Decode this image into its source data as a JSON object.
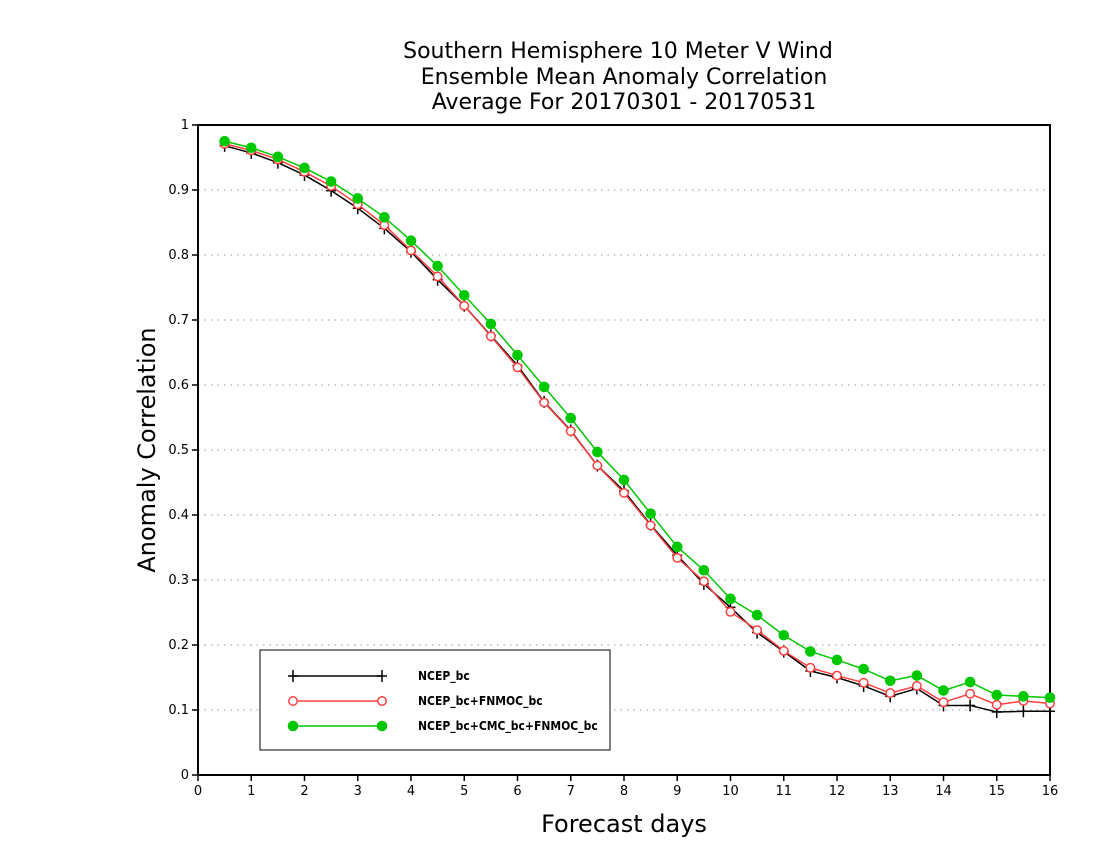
{
  "chart_data": {
    "type": "line",
    "title": [
      "Southern Hemisphere 10 Meter V Wind",
      "Ensemble Mean Anomaly Correlation",
      "Average For 20170301 - 20170531"
    ],
    "xlabel": "Forecast days",
    "ylabel": "Anomaly Correlation",
    "xlim": [
      0,
      16
    ],
    "ylim": [
      0,
      1
    ],
    "xticks": [
      "0",
      "1",
      "2",
      "3",
      "4",
      "5",
      "6",
      "7",
      "8",
      "9",
      "10",
      "11",
      "12",
      "13",
      "14",
      "15",
      "16"
    ],
    "yticks": [
      "0",
      "0.1",
      "0.2",
      "0.3",
      "0.4",
      "0.5",
      "0.6",
      "0.7",
      "0.8",
      "0.9",
      "1"
    ],
    "grid": "horizontal dotted",
    "legend_position": "bottom-left",
    "x": [
      0.5,
      1,
      1.5,
      2,
      2.5,
      3,
      3.5,
      4,
      4.5,
      5,
      5.5,
      6,
      6.5,
      7,
      7.5,
      8,
      8.5,
      9,
      9.5,
      10,
      10.5,
      11,
      11.5,
      12,
      12.5,
      13,
      13.5,
      14,
      14.5,
      15,
      15.5,
      16
    ],
    "series": [
      {
        "name": "NCEP_bc",
        "color": "#000000",
        "marker": "plus",
        "values": [
          0.968,
          0.957,
          0.942,
          0.923,
          0.899,
          0.872,
          0.841,
          0.805,
          0.762,
          0.722,
          0.676,
          0.63,
          0.574,
          0.53,
          0.476,
          0.437,
          0.385,
          0.338,
          0.294,
          0.258,
          0.219,
          0.19,
          0.16,
          0.15,
          0.137,
          0.121,
          0.133,
          0.107,
          0.107,
          0.097,
          0.098,
          0.098
        ]
      },
      {
        "name": "NCEP_bc+FNMOC_bc",
        "color": "#ff4040",
        "marker": "open-circle",
        "values": [
          0.971,
          0.961,
          0.947,
          0.928,
          0.906,
          0.878,
          0.846,
          0.807,
          0.767,
          0.722,
          0.675,
          0.627,
          0.573,
          0.529,
          0.476,
          0.434,
          0.384,
          0.334,
          0.298,
          0.251,
          0.223,
          0.191,
          0.165,
          0.153,
          0.142,
          0.126,
          0.137,
          0.112,
          0.125,
          0.108,
          0.114,
          0.11
        ]
      },
      {
        "name": "NCEP_bc+CMC_bc+FNMOC_bc",
        "color": "#00c800",
        "marker": "filled-circle",
        "values": [
          0.975,
          0.965,
          0.951,
          0.934,
          0.913,
          0.887,
          0.858,
          0.822,
          0.783,
          0.738,
          0.694,
          0.646,
          0.597,
          0.549,
          0.497,
          0.454,
          0.402,
          0.351,
          0.315,
          0.271,
          0.246,
          0.215,
          0.19,
          0.177,
          0.163,
          0.145,
          0.153,
          0.13,
          0.143,
          0.123,
          0.121,
          0.119
        ]
      }
    ]
  }
}
